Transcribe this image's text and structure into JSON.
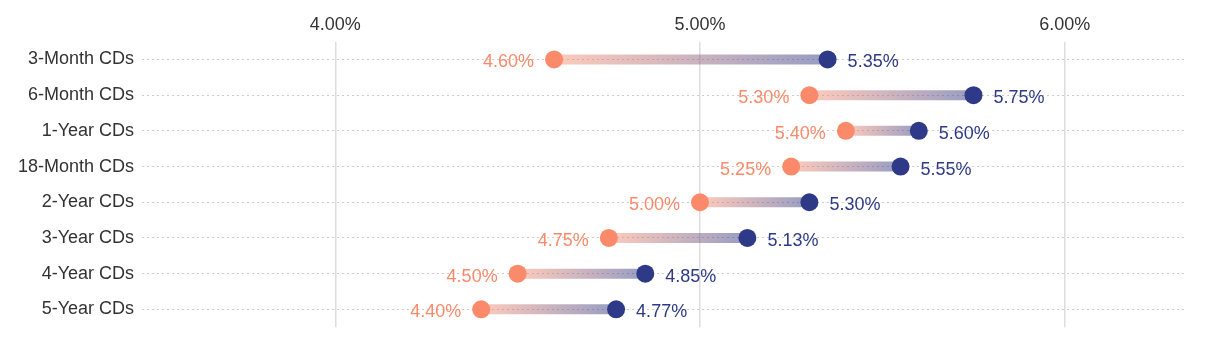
{
  "chart_data": {
    "type": "scatter",
    "orientation": "horizontal",
    "categories": [
      "3-Month CDs",
      "6-Month CDs",
      "1-Year CDs",
      "18-Month CDs",
      "2-Year CDs",
      "3-Year CDs",
      "4-Year CDs",
      "5-Year CDs"
    ],
    "series": [
      {
        "color": "#fa8a6a",
        "values": [
          4.6,
          5.3,
          5.4,
          5.25,
          5.0,
          4.75,
          4.5,
          4.4
        ],
        "value_labels": [
          "4.60%",
          "5.30%",
          "5.40%",
          "5.25%",
          "5.00%",
          "4.75%",
          "4.50%",
          "4.40%"
        ]
      },
      {
        "color": "#2e3a87",
        "values": [
          5.35,
          5.75,
          5.6,
          5.55,
          5.3,
          5.13,
          4.85,
          4.77
        ],
        "value_labels": [
          "5.35%",
          "5.75%",
          "5.60%",
          "5.55%",
          "5.30%",
          "5.13%",
          "4.85%",
          "4.77%"
        ]
      }
    ],
    "xlim": [
      3.47,
      6.33
    ],
    "xticks": [
      {
        "value": 4,
        "label": "4.00%"
      },
      {
        "value": 5,
        "label": "5.00%"
      },
      {
        "value": 6,
        "label": "6.00%"
      }
    ],
    "grid": true,
    "legend": false,
    "marker": "circle"
  }
}
